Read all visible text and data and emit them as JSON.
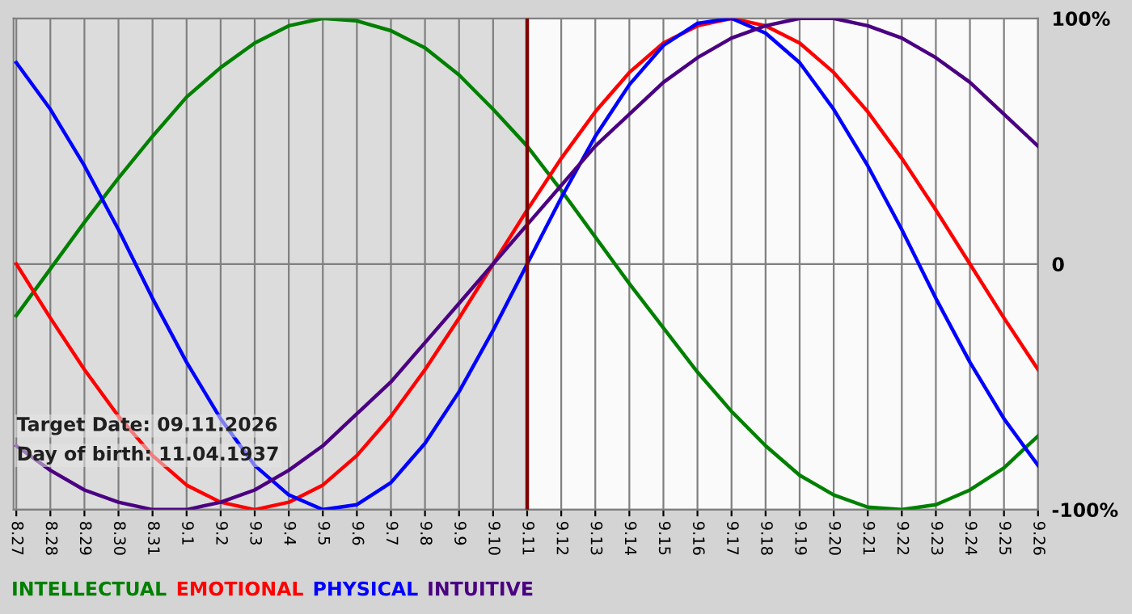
{
  "chart_data": {
    "type": "line",
    "categories": [
      "8.27",
      "8.28",
      "8.29",
      "8.30",
      "8.31",
      "9.1",
      "9.2",
      "9.3",
      "9.4",
      "9.5",
      "9.6",
      "9.7",
      "9.8",
      "9.9",
      "9.10",
      "9.11",
      "9.12",
      "9.13",
      "9.14",
      "9.15",
      "9.16",
      "9.17",
      "9.18",
      "9.19",
      "9.20",
      "9.21",
      "9.22",
      "9.23",
      "9.24",
      "9.25",
      "9.26"
    ],
    "series": [
      {
        "name": "INTELLECTUAL",
        "color": "#008000",
        "values": [
          -21,
          -2,
          17,
          35,
          52,
          68,
          80,
          90,
          97,
          100,
          99,
          95,
          88,
          77,
          63,
          48,
          30,
          11,
          -8,
          -26,
          -44,
          -60,
          -74,
          -86,
          -94,
          -99,
          -100,
          -98,
          -92,
          -83,
          -70
        ]
      },
      {
        "name": "EMOTIONAL",
        "color": "#ff0000",
        "values": [
          0,
          -22,
          -43,
          -62,
          -78,
          -90,
          -97,
          -100,
          -97,
          -90,
          -78,
          -62,
          -43,
          -22,
          0,
          22,
          43,
          62,
          78,
          90,
          97,
          100,
          97,
          90,
          78,
          62,
          43,
          22,
          0,
          -22,
          -43
        ]
      },
      {
        "name": "PHYSICAL",
        "color": "#0000ff",
        "values": [
          82,
          63,
          40,
          14,
          -14,
          -40,
          -63,
          -82,
          -94,
          -100,
          -98,
          -89,
          -73,
          -52,
          -27,
          0,
          27,
          52,
          73,
          89,
          98,
          100,
          94,
          82,
          63,
          40,
          14,
          -14,
          -40,
          -63,
          -82
        ]
      },
      {
        "name": "INTUITIVE",
        "color": "#4b0082",
        "values": [
          -74,
          -84,
          -92,
          -97,
          -100,
          -100,
          -97,
          -92,
          -84,
          -74,
          -61,
          -48,
          -32,
          -16,
          0,
          16,
          32,
          48,
          61,
          74,
          84,
          92,
          97,
          100,
          100,
          97,
          92,
          84,
          74,
          61,
          48
        ]
      }
    ],
    "ylim": [
      -100,
      100
    ],
    "yticks": [
      {
        "value": -100,
        "label": "-100%"
      },
      0,
      {
        "value": 100,
        "label": "100%"
      }
    ],
    "grid": true,
    "legend": "bottom left",
    "ref_lines": [
      {
        "axis": "x",
        "value": "9.11",
        "color": "#800000"
      }
    ],
    "bands": [
      {
        "axis": "x",
        "from": "8.27",
        "to": "9.11",
        "color": "#dcdcdc"
      },
      {
        "axis": "x",
        "from": "9.11",
        "to": "9.26",
        "color": "#fafafa"
      }
    ],
    "annotations": [
      "Target Date: 09.11.2026",
      "Day of birth: 11.04.1937"
    ]
  }
}
